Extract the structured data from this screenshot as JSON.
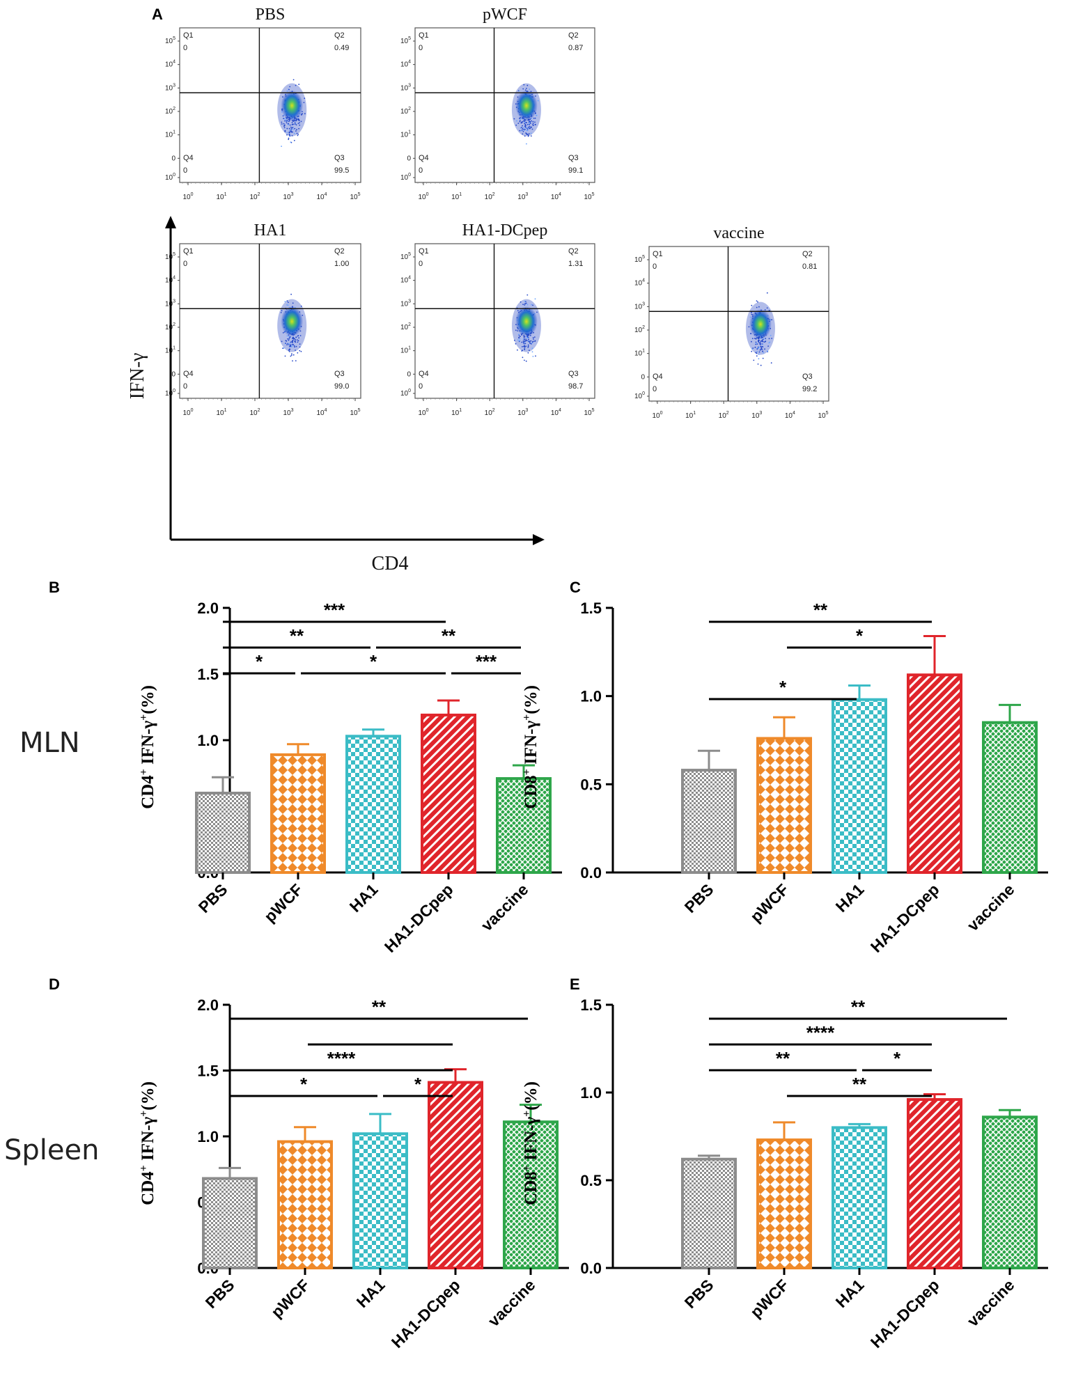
{
  "panel_letters": [
    "A",
    "B",
    "C",
    "D",
    "E"
  ],
  "row_labels": {
    "mln": "MLN",
    "spleen": "Spleen"
  },
  "flow": {
    "axis_y": "IFN-γ",
    "axis_x": "CD4",
    "quadrant_names": [
      "Q1",
      "Q2",
      "Q3",
      "Q4"
    ],
    "y_ticks": [
      {
        "base": "10",
        "exp": "5"
      },
      {
        "base": "10",
        "exp": "4"
      },
      {
        "base": "10",
        "exp": "3"
      },
      {
        "base": "10",
        "exp": "2"
      },
      {
        "base": "10",
        "exp": "1"
      },
      {
        "base": "0",
        "exp": ""
      },
      {
        "base": "10",
        "exp": "0"
      }
    ],
    "x_ticks": [
      {
        "base": "10",
        "exp": "0"
      },
      {
        "base": "10",
        "exp": "1"
      },
      {
        "base": "10",
        "exp": "2"
      },
      {
        "base": "10",
        "exp": "3"
      },
      {
        "base": "10",
        "exp": "4"
      },
      {
        "base": "10",
        "exp": "5"
      }
    ],
    "plots": [
      {
        "title": "PBS",
        "q1": "0",
        "q2": "0.49",
        "q3": "99.5",
        "q4": "0"
      },
      {
        "title": "pWCF",
        "q1": "0",
        "q2": "0.87",
        "q3": "99.1",
        "q4": "0"
      },
      {
        "title": "HA1",
        "q1": "0",
        "q2": "1.00",
        "q3": "99.0",
        "q4": "0"
      },
      {
        "title": "HA1-DCpep",
        "q1": "0",
        "q2": "1.31",
        "q3": "98.7",
        "q4": "0"
      },
      {
        "title": "vaccine",
        "q1": "0",
        "q2": "0.81",
        "q3": "99.2",
        "q4": "0"
      }
    ]
  },
  "colors": {
    "PBS": "#8c8c8c",
    "pWCF": "#ef8a2a",
    "HA1": "#3bbcc6",
    "HA1-DCpep": "#e0252b",
    "vaccine": "#2ea64a"
  },
  "chart_data": [
    {
      "panel": "B",
      "type": "bar",
      "ylabel": {
        "cell": "CD4",
        "sup1": "+",
        "mid": " IFN-γ",
        "sup2": "+",
        "tail": "(%)"
      },
      "categories": [
        "PBS",
        "pWCF",
        "HA1",
        "HA1-DCpep",
        "vaccine"
      ],
      "values": [
        0.6,
        0.89,
        1.03,
        1.19,
        0.71
      ],
      "errors": [
        0.12,
        0.08,
        0.05,
        0.11,
        0.1
      ],
      "ylim": [
        0,
        2.0
      ],
      "yticks": [
        "0.0",
        "0.5",
        "1.0",
        "1.5",
        "2.0"
      ],
      "significance": [
        {
          "from": 0,
          "to": 3,
          "label": "***",
          "level": 0
        },
        {
          "from": 0,
          "to": 2,
          "label": "**",
          "level": 1
        },
        {
          "from": 2,
          "to": 4,
          "label": "**",
          "level": 1
        },
        {
          "from": 0,
          "to": 1,
          "label": "*",
          "level": 2
        },
        {
          "from": 1,
          "to": 3,
          "label": "*",
          "level": 2
        },
        {
          "from": 3,
          "to": 4,
          "label": "***",
          "level": 2
        }
      ]
    },
    {
      "panel": "C",
      "type": "bar",
      "ylabel": {
        "cell": "CD8",
        "sup1": "+",
        "mid": " IFN-γ",
        "sup2": "+",
        "tail": "(%)"
      },
      "categories": [
        "PBS",
        "pWCF",
        "HA1",
        "HA1-DCpep",
        "vaccine"
      ],
      "values": [
        0.58,
        0.76,
        0.98,
        1.12,
        0.85
      ],
      "errors": [
        0.11,
        0.12,
        0.08,
        0.22,
        0.1
      ],
      "ylim": [
        0,
        1.5
      ],
      "yticks": [
        "0.0",
        "0.5",
        "1.0",
        "1.5"
      ],
      "significance": [
        {
          "from": 0,
          "to": 3,
          "label": "**",
          "level": 0
        },
        {
          "from": 1,
          "to": 3,
          "label": "*",
          "level": 1
        },
        {
          "from": 0,
          "to": 2,
          "label": "*",
          "level": 3
        }
      ]
    },
    {
      "panel": "D",
      "type": "bar",
      "ylabel": {
        "cell": "CD4",
        "sup1": "+",
        "mid": " IFN-γ",
        "sup2": "+",
        "tail": "(%)"
      },
      "categories": [
        "PBS",
        "pWCF",
        "HA1",
        "HA1-DCpep",
        "vaccine"
      ],
      "values": [
        0.68,
        0.96,
        1.02,
        1.41,
        1.11
      ],
      "errors": [
        0.08,
        0.11,
        0.15,
        0.1,
        0.13
      ],
      "ylim": [
        0,
        2.0
      ],
      "yticks": [
        "0.0",
        "0.5",
        "1.0",
        "1.5",
        "2.0"
      ],
      "significance": [
        {
          "from": 0,
          "to": 4,
          "label": "**",
          "level": 0
        },
        {
          "from": 1,
          "to": 3,
          "label": "",
          "level": 1
        },
        {
          "from": 0,
          "to": 3,
          "label": "****",
          "level": 2
        },
        {
          "from": 0,
          "to": 2,
          "label": "*",
          "level": 3
        },
        {
          "from": 2,
          "to": 3,
          "label": "*",
          "level": 3
        }
      ]
    },
    {
      "panel": "E",
      "type": "bar",
      "ylabel": {
        "cell": "CD8",
        "sup1": "+",
        "mid": " IFN-γ",
        "sup2": "+",
        "tail": "(%)"
      },
      "categories": [
        "PBS",
        "pWCF",
        "HA1",
        "HA1-DCpep",
        "vaccine"
      ],
      "values": [
        0.62,
        0.73,
        0.8,
        0.96,
        0.86
      ],
      "errors": [
        0.02,
        0.1,
        0.02,
        0.03,
        0.04
      ],
      "ylim": [
        0,
        1.5
      ],
      "yticks": [
        "0.0",
        "0.5",
        "1.0",
        "1.5"
      ],
      "significance": [
        {
          "from": 0,
          "to": 4,
          "label": "**",
          "level": 0
        },
        {
          "from": 0,
          "to": 3,
          "label": "****",
          "level": 1
        },
        {
          "from": 0,
          "to": 2,
          "label": "**",
          "level": 2
        },
        {
          "from": 2,
          "to": 3,
          "label": "*",
          "level": 2
        },
        {
          "from": 1,
          "to": 3,
          "label": "**",
          "level": 3
        }
      ]
    }
  ]
}
